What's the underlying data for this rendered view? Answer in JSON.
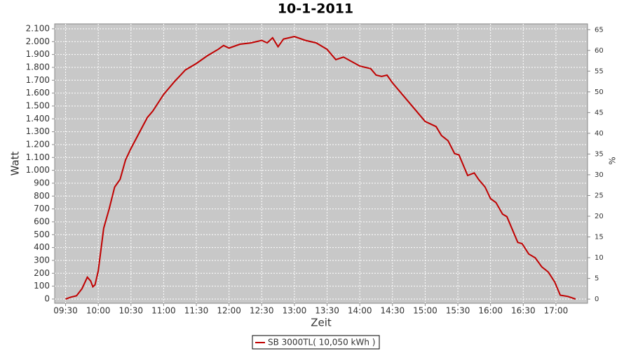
{
  "chart_data": {
    "type": "line",
    "title": "10-1-2011",
    "xlabel": "Zeit",
    "ylabel": "Watt",
    "y2label": "%",
    "xlim": [
      "09:20",
      "17:29"
    ],
    "xticks": [
      "09:30",
      "10:00",
      "10:30",
      "11:00",
      "11:30",
      "12:00",
      "12:30",
      "13:00",
      "13:30",
      "14:00",
      "14:30",
      "15:00",
      "15:30",
      "16:00",
      "16:30",
      "17:00"
    ],
    "ylim": [
      -33,
      2138
    ],
    "yticks": [
      0,
      100,
      200,
      300,
      400,
      500,
      600,
      700,
      800,
      900,
      {
        "value": 1000,
        "label": "1.000"
      },
      {
        "value": 1100,
        "label": "1.100"
      },
      {
        "value": 1200,
        "label": "1.200"
      },
      {
        "value": 1300,
        "label": "1.300"
      },
      {
        "value": 1400,
        "label": "1.400"
      },
      {
        "value": 1500,
        "label": "1.500"
      },
      {
        "value": 1600,
        "label": "1.600"
      },
      {
        "value": 1700,
        "label": "1.700"
      },
      {
        "value": 1800,
        "label": "1.800"
      },
      {
        "value": 1900,
        "label": "1.900"
      },
      {
        "value": 2000,
        "label": "2.000"
      },
      {
        "value": 2100,
        "label": "2.100"
      }
    ],
    "y2lim": [
      -1,
      66.4
    ],
    "y2ticks": [
      0,
      5,
      10,
      15,
      20,
      25,
      30,
      35,
      40,
      45,
      50,
      55,
      60,
      65
    ],
    "grid": true,
    "legend": "bottom",
    "series": [
      {
        "name": "SB 3000TL( 10,050 kWh )",
        "color": "#c00000",
        "x": [
          "09:30",
          "09:35",
          "09:40",
          "09:45",
          "09:50",
          "09:53",
          "09:55",
          "09:57",
          "10:00",
          "10:05",
          "10:10",
          "10:15",
          "10:20",
          "10:25",
          "10:30",
          "10:40",
          "10:45",
          "10:50",
          "11:00",
          "11:10",
          "11:20",
          "11:30",
          "11:40",
          "11:50",
          "11:55",
          "12:00",
          "12:10",
          "12:20",
          "12:30",
          "12:35",
          "12:40",
          "12:45",
          "12:50",
          "13:00",
          "13:10",
          "13:20",
          "13:30",
          "13:38",
          "13:45",
          "14:00",
          "14:10",
          "14:15",
          "14:20",
          "14:25",
          "14:30",
          "14:40",
          "14:49",
          "15:00",
          "15:10",
          "15:15",
          "15:21",
          "15:27",
          "15:31",
          "15:39",
          "15:45",
          "15:49",
          "15:55",
          "16:00",
          "16:05",
          "16:11",
          "16:15",
          "16:25",
          "16:29",
          "16:35",
          "16:41",
          "16:47",
          "16:53",
          "16:59",
          "17:04",
          "17:11",
          "17:18"
        ],
        "values": [
          0,
          15,
          25,
          80,
          170,
          140,
          95,
          110,
          220,
          550,
          700,
          870,
          930,
          1080,
          1170,
          1330,
          1410,
          1460,
          1590,
          1690,
          1780,
          1830,
          1890,
          1940,
          1970,
          1950,
          1980,
          1990,
          2010,
          1990,
          2030,
          1960,
          2020,
          2040,
          2010,
          1990,
          1940,
          1860,
          1880,
          1810,
          1790,
          1740,
          1730,
          1740,
          1680,
          1580,
          1490,
          1380,
          1340,
          1270,
          1230,
          1130,
          1120,
          960,
          980,
          930,
          870,
          780,
          750,
          660,
          640,
          440,
          430,
          350,
          320,
          250,
          210,
          130,
          30,
          20,
          0
        ]
      }
    ]
  }
}
